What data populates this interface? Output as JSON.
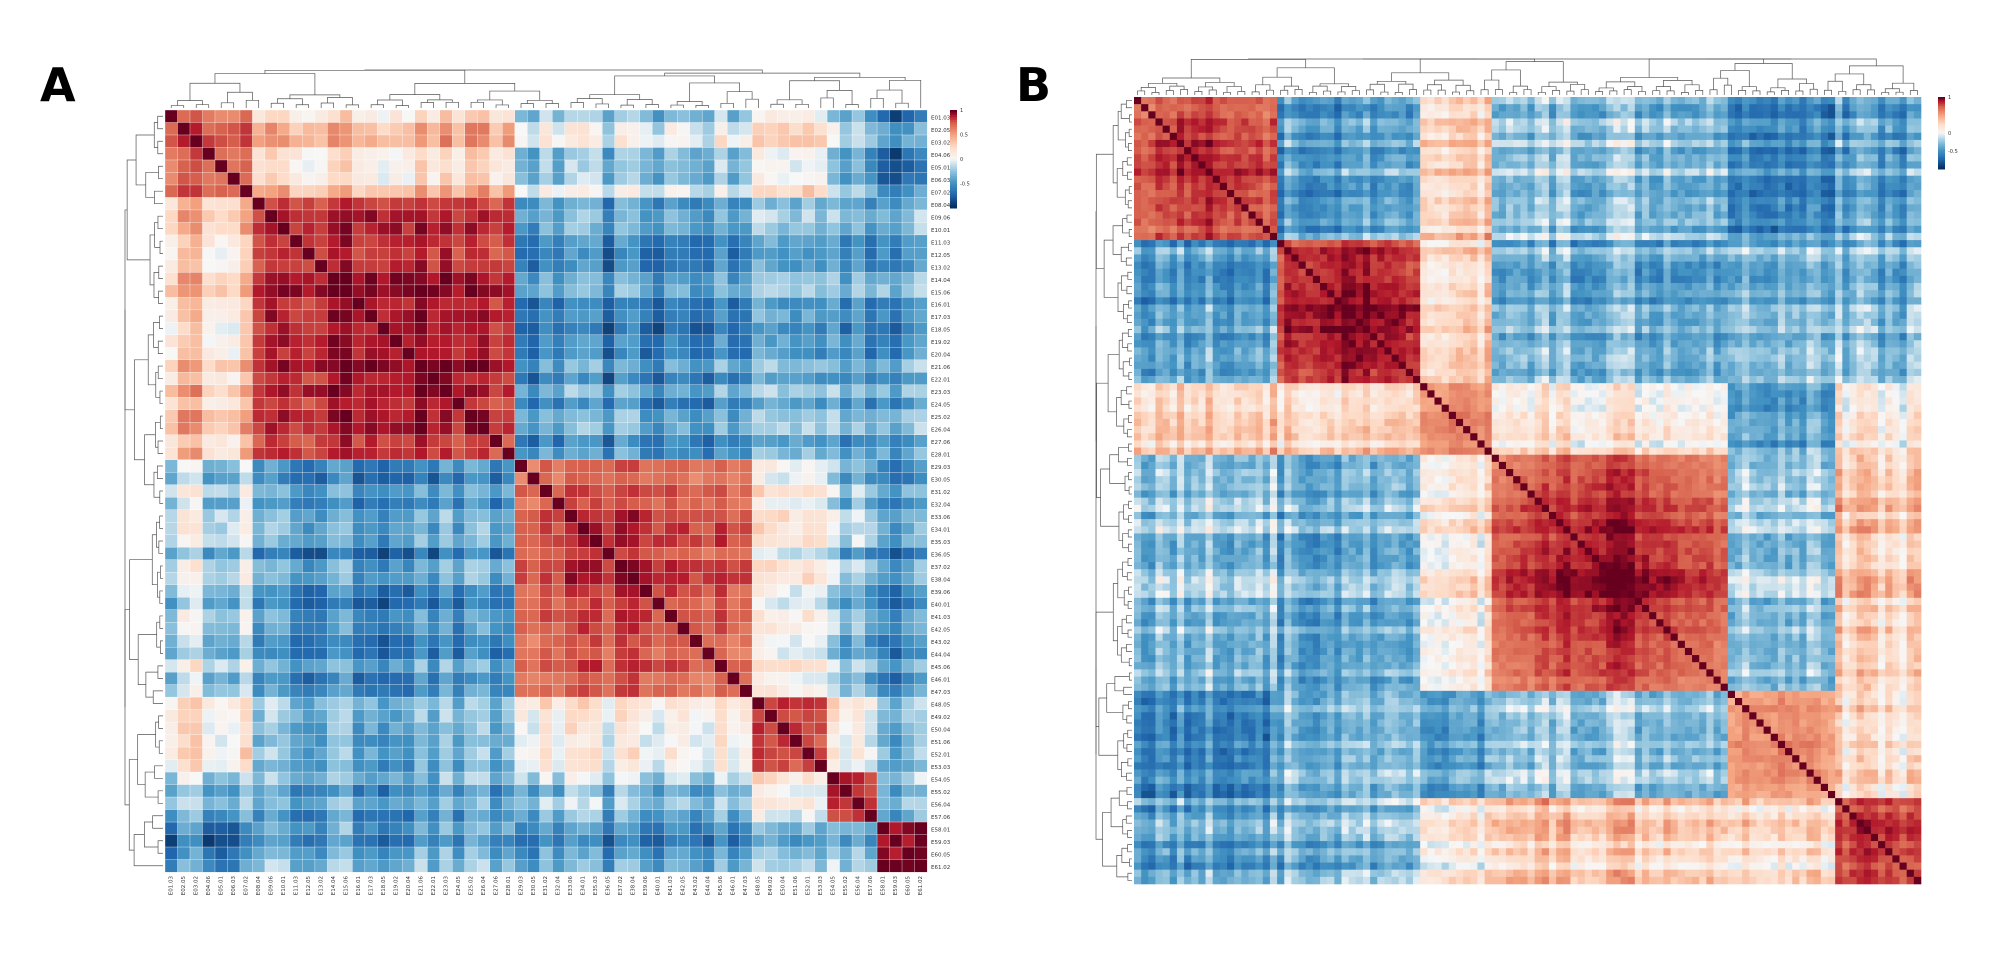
{
  "panels": [
    {
      "letter": "A",
      "n": 61,
      "colorbar_ticks": [
        "1",
        "0.5",
        "0",
        "-0.5"
      ],
      "labels": [
        "E01.03",
        "E02.05",
        "E03.02",
        "E04.06",
        "E05.01",
        "E06.03",
        "E07.02",
        "E08.04",
        "E09.06",
        "E10.01",
        "E11.03",
        "E12.05",
        "E13.02",
        "E14.04",
        "E15.06",
        "E16.01",
        "E17.03",
        "E18.05",
        "E19.02",
        "E20.04",
        "E21.06",
        "E22.01",
        "E23.03",
        "E24.05",
        "E25.02",
        "E26.04",
        "E27.06",
        "E28.01",
        "E29.03",
        "E30.05",
        "E31.02",
        "E32.04",
        "E33.06",
        "E34.01",
        "E35.03",
        "E36.05",
        "E37.02",
        "E38.04",
        "E39.06",
        "E40.01",
        "E41.03",
        "E42.05",
        "E43.02",
        "E44.04",
        "E45.06",
        "E46.01",
        "E47.03",
        "E48.05",
        "E49.02",
        "E50.04",
        "E51.06",
        "E52.01",
        "E53.03",
        "E54.05",
        "E55.02",
        "E56.04",
        "E57.06",
        "E58.01",
        "E59.03",
        "E60.05",
        "E61.02"
      ],
      "blocks": [
        {
          "start": 0,
          "end": 7,
          "value": 0.62
        },
        {
          "start": 7,
          "end": 28,
          "value": 0.82
        },
        {
          "start": 28,
          "end": 47,
          "value": 0.68
        },
        {
          "start": 47,
          "end": 53,
          "value": 0.66
        },
        {
          "start": 53,
          "end": 57,
          "value": 0.72
        },
        {
          "start": 57,
          "end": 61,
          "value": 0.78
        }
      ],
      "block_links": [
        [
          0,
          1,
          0.32
        ],
        [
          0,
          2,
          -0.15
        ],
        [
          1,
          2,
          -0.55
        ],
        [
          1,
          3,
          -0.35
        ],
        [
          2,
          3,
          0.05
        ],
        [
          2,
          4,
          -0.25
        ],
        [
          3,
          4,
          0.1
        ],
        [
          0,
          5,
          -0.6
        ],
        [
          1,
          5,
          -0.45
        ],
        [
          4,
          5,
          -0.3
        ],
        [
          0,
          3,
          0.18
        ],
        [
          1,
          4,
          -0.4
        ],
        [
          3,
          5,
          -0.35
        ],
        [
          2,
          5,
          -0.55
        ],
        [
          0,
          4,
          -0.2
        ]
      ]
    },
    {
      "letter": "B",
      "n": 110,
      "colorbar_ticks": [
        "1",
        "0",
        "-0.5"
      ],
      "labels": [],
      "blocks": [
        {
          "start": 0,
          "end": 20,
          "value": 0.75
        },
        {
          "start": 20,
          "end": 40,
          "value": 0.8
        },
        {
          "start": 40,
          "end": 50,
          "value": 0.45
        },
        {
          "start": 50,
          "end": 83,
          "value": 0.85
        },
        {
          "start": 83,
          "end": 98,
          "value": 0.5
        },
        {
          "start": 98,
          "end": 110,
          "value": 0.7
        }
      ],
      "block_links": [
        [
          0,
          1,
          -0.45
        ],
        [
          0,
          2,
          0.3
        ],
        [
          0,
          3,
          -0.2
        ],
        [
          1,
          2,
          0.2
        ],
        [
          1,
          3,
          -0.35
        ],
        [
          2,
          3,
          0.15
        ],
        [
          0,
          4,
          -0.5
        ],
        [
          1,
          4,
          -0.3
        ],
        [
          3,
          4,
          -0.15
        ],
        [
          4,
          5,
          0.25
        ],
        [
          0,
          5,
          -0.4
        ],
        [
          1,
          5,
          -0.35
        ],
        [
          2,
          5,
          0.1
        ],
        [
          3,
          5,
          0.35
        ],
        [
          2,
          4,
          -0.4
        ]
      ]
    }
  ],
  "colors": {
    "high": "#67001f",
    "mid": "#f7f7f7",
    "low": "#053061"
  },
  "chart_data": [
    {
      "type": "heatmap",
      "title": "",
      "panel": "A",
      "value_range": [
        -1,
        1
      ],
      "colormap": "RdBu_r",
      "colorbar_ticks": [
        "1",
        "0.5",
        "0",
        "-0.5"
      ],
      "dendrograms": "top and left",
      "clusters": [
        {
          "size": 7,
          "mean_within": 0.62
        },
        {
          "size": 21,
          "mean_within": 0.82
        },
        {
          "size": 19,
          "mean_within": 0.68
        },
        {
          "size": 6,
          "mean_within": 0.66
        },
        {
          "size": 4,
          "mean_within": 0.72
        },
        {
          "size": 4,
          "mean_within": 0.78
        }
      ]
    },
    {
      "type": "heatmap",
      "title": "",
      "panel": "B",
      "value_range": [
        -1,
        1
      ],
      "colormap": "RdBu_r",
      "colorbar_ticks": [
        "1",
        "0",
        "-0.5"
      ],
      "dendrograms": "top and left",
      "clusters": [
        {
          "size": 20,
          "mean_within": 0.75
        },
        {
          "size": 20,
          "mean_within": 0.8
        },
        {
          "size": 10,
          "mean_within": 0.45
        },
        {
          "size": 33,
          "mean_within": 0.85
        },
        {
          "size": 15,
          "mean_within": 0.5
        },
        {
          "size": 12,
          "mean_within": 0.7
        }
      ]
    }
  ]
}
